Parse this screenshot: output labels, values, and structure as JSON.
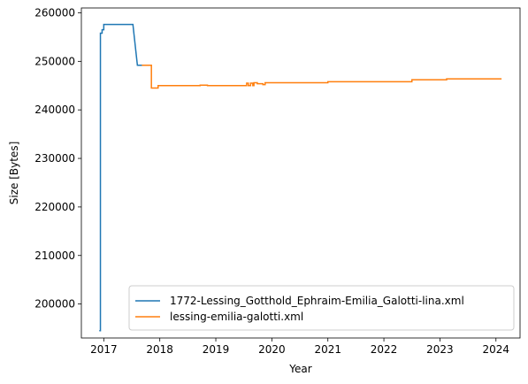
{
  "chart_data": {
    "type": "line",
    "title": "",
    "xlabel": "Year",
    "ylabel": "Size [Bytes]",
    "xlim": [
      2016.6,
      2024.43
    ],
    "ylim": [
      193000,
      261000
    ],
    "x_ticks": [
      2017,
      2018,
      2019,
      2020,
      2021,
      2022,
      2023,
      2024
    ],
    "x_tick_labels": [
      "2017",
      "2018",
      "2019",
      "2020",
      "2021",
      "2022",
      "2023",
      "2024"
    ],
    "y_ticks": [
      200000,
      210000,
      220000,
      230000,
      240000,
      250000,
      260000
    ],
    "y_tick_labels": [
      "200000",
      "210000",
      "220000",
      "230000",
      "240000",
      "250000",
      "260000"
    ],
    "grid": false,
    "legend_position": "lower-right",
    "series": [
      {
        "name": "1772-Lessing_Gotthold_Ephraim-Emilia_Galotti-lina.xml",
        "color": "#1f77b4",
        "step": true,
        "points": [
          [
            2016.92,
            194500
          ],
          [
            2016.94,
            194500
          ],
          [
            2016.94,
            255800
          ],
          [
            2016.97,
            255800
          ],
          [
            2016.97,
            256500
          ],
          [
            2017.0,
            256500
          ],
          [
            2017.0,
            257600
          ],
          [
            2017.52,
            257600
          ],
          [
            2017.52,
            257600
          ],
          [
            2017.6,
            249200
          ],
          [
            2017.72,
            249200
          ]
        ]
      },
      {
        "name": "lessing-emilia-galotti.xml",
        "color": "#ff7f0e",
        "step": true,
        "points": [
          [
            2017.68,
            249200
          ],
          [
            2017.85,
            249200
          ],
          [
            2017.85,
            244500
          ],
          [
            2017.97,
            244500
          ],
          [
            2017.97,
            245000
          ],
          [
            2018.72,
            245000
          ],
          [
            2018.72,
            245100
          ],
          [
            2018.85,
            245100
          ],
          [
            2018.85,
            245000
          ],
          [
            2019.55,
            245000
          ],
          [
            2019.55,
            245500
          ],
          [
            2019.58,
            245500
          ],
          [
            2019.58,
            245000
          ],
          [
            2019.62,
            245000
          ],
          [
            2019.62,
            245500
          ],
          [
            2019.66,
            245500
          ],
          [
            2019.66,
            245000
          ],
          [
            2019.68,
            245000
          ],
          [
            2019.68,
            245600
          ],
          [
            2019.74,
            245600
          ],
          [
            2019.74,
            245400
          ],
          [
            2019.84,
            245400
          ],
          [
            2019.84,
            245200
          ],
          [
            2019.88,
            245200
          ],
          [
            2019.88,
            245600
          ],
          [
            2021.0,
            245600
          ],
          [
            2021.0,
            245800
          ],
          [
            2022.5,
            245800
          ],
          [
            2022.5,
            246200
          ],
          [
            2023.12,
            246200
          ],
          [
            2023.12,
            246400
          ],
          [
            2024.1,
            246400
          ]
        ]
      }
    ]
  }
}
